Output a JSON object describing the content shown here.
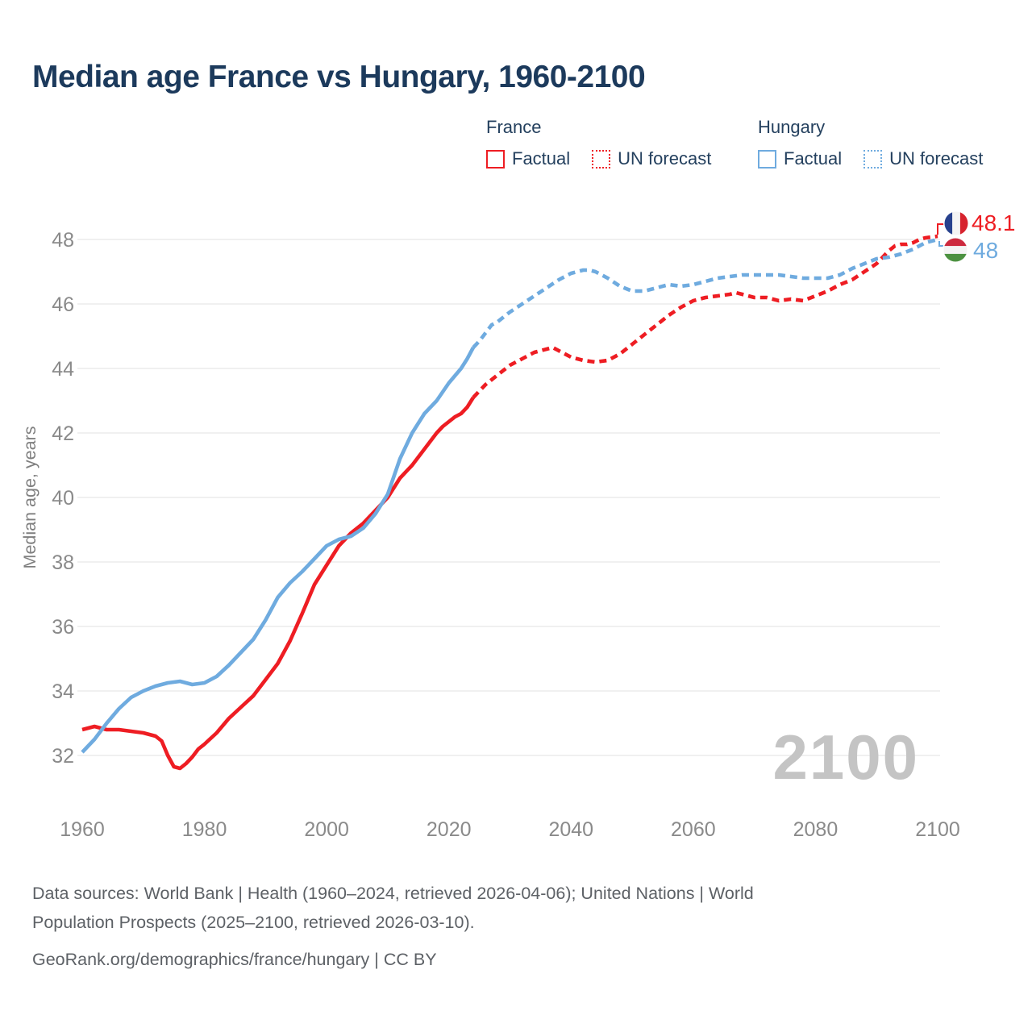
{
  "title": "Median age France vs Hungary, 1960-2100",
  "legend": {
    "france_label": "France",
    "hungary_label": "Hungary",
    "factual_label": "Factual",
    "forecast_label": "UN forecast"
  },
  "colors": {
    "france": "#ee1d23",
    "hungary": "#6fabdf",
    "title": "#1c3a5c",
    "axis_text": "#8a8a8a",
    "axis_title_text": "#7f7f7f",
    "grid": "#e6e6e6",
    "watermark": "#c4c4c4",
    "footer_text": "#5d6166",
    "flag_france_blue": "#27418d",
    "flag_france_red": "#d7232e",
    "flag_hungary_red": "#cd2a3e",
    "flag_hungary_green": "#4c9140"
  },
  "watermark": "2100",
  "end_labels": {
    "france_value": "48.1",
    "hungary_value": "48"
  },
  "y_axis": {
    "title": "Median age, years"
  },
  "footer": {
    "line1": "Data sources: World Bank | Health (1960–2024, retrieved 2026-04-06); United Nations | World",
    "line2": "Population Prospects (2025–2100, retrieved 2026-03-10).",
    "line3": "GeoRank.org/demographics/france/hungary | CC BY"
  },
  "chart_data": {
    "type": "line",
    "title": "Median age France vs Hungary, 1960-2100",
    "xlabel": "",
    "ylabel": "Median age, years",
    "x_domain": [
      1960,
      2100
    ],
    "y_domain": [
      32,
      48
    ],
    "x_ticks": [
      1960,
      1980,
      2000,
      2020,
      2040,
      2060,
      2080,
      2100
    ],
    "y_ticks": [
      32,
      34,
      36,
      38,
      40,
      42,
      44,
      46,
      48
    ],
    "grid": true,
    "legend_position": "top",
    "series": [
      {
        "name": "France Factual",
        "color_key": "france",
        "style": "solid",
        "points": [
          [
            1960,
            32.8
          ],
          [
            1962,
            32.9
          ],
          [
            1963,
            32.85
          ],
          [
            1964,
            32.8
          ],
          [
            1966,
            32.8
          ],
          [
            1968,
            32.75
          ],
          [
            1970,
            32.7
          ],
          [
            1972,
            32.6
          ],
          [
            1973,
            32.45
          ],
          [
            1974,
            32.0
          ],
          [
            1975,
            31.65
          ],
          [
            1976,
            31.6
          ],
          [
            1977,
            31.75
          ],
          [
            1978,
            31.95
          ],
          [
            1979,
            32.2
          ],
          [
            1980,
            32.35
          ],
          [
            1982,
            32.7
          ],
          [
            1984,
            33.15
          ],
          [
            1986,
            33.5
          ],
          [
            1988,
            33.85
          ],
          [
            1990,
            34.35
          ],
          [
            1992,
            34.85
          ],
          [
            1994,
            35.55
          ],
          [
            1996,
            36.4
          ],
          [
            1998,
            37.3
          ],
          [
            2000,
            37.9
          ],
          [
            2002,
            38.5
          ],
          [
            2004,
            38.9
          ],
          [
            2006,
            39.2
          ],
          [
            2008,
            39.6
          ],
          [
            2010,
            40.0
          ],
          [
            2012,
            40.6
          ],
          [
            2014,
            41.0
          ],
          [
            2016,
            41.5
          ],
          [
            2018,
            42.0
          ],
          [
            2019,
            42.2
          ],
          [
            2020,
            42.35
          ],
          [
            2021,
            42.5
          ],
          [
            2022,
            42.6
          ],
          [
            2023,
            42.8
          ],
          [
            2024,
            43.1
          ]
        ]
      },
      {
        "name": "France UN forecast",
        "color_key": "france",
        "style": "dashed",
        "points": [
          [
            2024,
            43.1
          ],
          [
            2025,
            43.3
          ],
          [
            2026,
            43.5
          ],
          [
            2028,
            43.8
          ],
          [
            2030,
            44.1
          ],
          [
            2032,
            44.3
          ],
          [
            2034,
            44.5
          ],
          [
            2036,
            44.6
          ],
          [
            2037,
            44.65
          ],
          [
            2038,
            44.55
          ],
          [
            2040,
            44.35
          ],
          [
            2042,
            44.25
          ],
          [
            2044,
            44.2
          ],
          [
            2046,
            44.25
          ],
          [
            2048,
            44.45
          ],
          [
            2050,
            44.75
          ],
          [
            2052,
            45.05
          ],
          [
            2054,
            45.35
          ],
          [
            2056,
            45.65
          ],
          [
            2058,
            45.9
          ],
          [
            2060,
            46.1
          ],
          [
            2062,
            46.2
          ],
          [
            2064,
            46.25
          ],
          [
            2066,
            46.3
          ],
          [
            2067,
            46.35
          ],
          [
            2068,
            46.3
          ],
          [
            2070,
            46.2
          ],
          [
            2072,
            46.2
          ],
          [
            2074,
            46.1
          ],
          [
            2076,
            46.15
          ],
          [
            2078,
            46.1
          ],
          [
            2080,
            46.25
          ],
          [
            2082,
            46.4
          ],
          [
            2084,
            46.6
          ],
          [
            2086,
            46.75
          ],
          [
            2088,
            47.0
          ],
          [
            2090,
            47.25
          ],
          [
            2092,
            47.65
          ],
          [
            2093,
            47.8
          ],
          [
            2094,
            47.85
          ],
          [
            2095,
            47.85
          ],
          [
            2096,
            47.9
          ],
          [
            2097,
            48.0
          ],
          [
            2098,
            48.05
          ],
          [
            2100,
            48.1
          ]
        ]
      },
      {
        "name": "Hungary Factual",
        "color_key": "hungary",
        "style": "solid",
        "points": [
          [
            1960,
            32.1
          ],
          [
            1962,
            32.5
          ],
          [
            1964,
            33.0
          ],
          [
            1966,
            33.45
          ],
          [
            1968,
            33.8
          ],
          [
            1970,
            34.0
          ],
          [
            1972,
            34.15
          ],
          [
            1974,
            34.25
          ],
          [
            1976,
            34.3
          ],
          [
            1978,
            34.2
          ],
          [
            1980,
            34.25
          ],
          [
            1982,
            34.45
          ],
          [
            1984,
            34.8
          ],
          [
            1986,
            35.2
          ],
          [
            1988,
            35.6
          ],
          [
            1990,
            36.2
          ],
          [
            1992,
            36.9
          ],
          [
            1994,
            37.35
          ],
          [
            1996,
            37.7
          ],
          [
            1998,
            38.1
          ],
          [
            2000,
            38.5
          ],
          [
            2002,
            38.7
          ],
          [
            2004,
            38.8
          ],
          [
            2006,
            39.05
          ],
          [
            2008,
            39.5
          ],
          [
            2010,
            40.1
          ],
          [
            2012,
            41.2
          ],
          [
            2014,
            42.0
          ],
          [
            2016,
            42.6
          ],
          [
            2018,
            43.0
          ],
          [
            2020,
            43.55
          ],
          [
            2022,
            44.0
          ],
          [
            2023,
            44.3
          ],
          [
            2024,
            44.65
          ]
        ]
      },
      {
        "name": "Hungary UN forecast",
        "color_key": "hungary",
        "style": "dashed",
        "points": [
          [
            2024,
            44.65
          ],
          [
            2025,
            44.85
          ],
          [
            2026,
            45.1
          ],
          [
            2027,
            45.35
          ],
          [
            2028,
            45.45
          ],
          [
            2030,
            45.75
          ],
          [
            2032,
            46.0
          ],
          [
            2034,
            46.25
          ],
          [
            2036,
            46.5
          ],
          [
            2038,
            46.75
          ],
          [
            2040,
            46.95
          ],
          [
            2042,
            47.05
          ],
          [
            2043,
            47.05
          ],
          [
            2044,
            47.0
          ],
          [
            2046,
            46.8
          ],
          [
            2048,
            46.55
          ],
          [
            2050,
            46.4
          ],
          [
            2052,
            46.4
          ],
          [
            2054,
            46.5
          ],
          [
            2056,
            46.6
          ],
          [
            2058,
            46.55
          ],
          [
            2060,
            46.6
          ],
          [
            2062,
            46.7
          ],
          [
            2064,
            46.8
          ],
          [
            2066,
            46.85
          ],
          [
            2068,
            46.9
          ],
          [
            2070,
            46.9
          ],
          [
            2072,
            46.9
          ],
          [
            2074,
            46.9
          ],
          [
            2076,
            46.85
          ],
          [
            2078,
            46.8
          ],
          [
            2080,
            46.8
          ],
          [
            2082,
            46.8
          ],
          [
            2084,
            46.9
          ],
          [
            2086,
            47.1
          ],
          [
            2088,
            47.25
          ],
          [
            2090,
            47.4
          ],
          [
            2092,
            47.45
          ],
          [
            2094,
            47.55
          ],
          [
            2096,
            47.7
          ],
          [
            2098,
            47.9
          ],
          [
            2100,
            48.0
          ]
        ]
      }
    ],
    "end_values": {
      "France": 48.1,
      "Hungary": 48
    }
  }
}
